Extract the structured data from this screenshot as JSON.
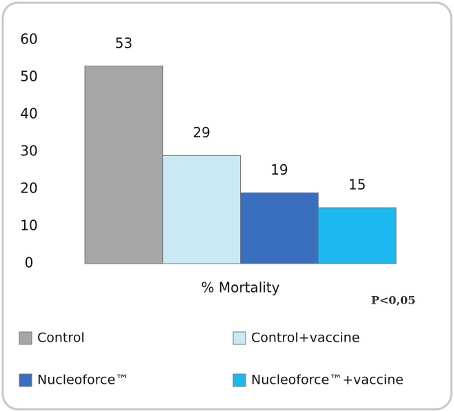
{
  "chart_data": {
    "type": "bar",
    "categories": [
      "% Mortality"
    ],
    "series": [
      {
        "name": "Control",
        "color": "#a6a6a6",
        "values": [
          53
        ]
      },
      {
        "name": "Control+vaccine",
        "color": "#c9eaf4",
        "values": [
          29
        ]
      },
      {
        "name": "Nucleoforce™",
        "color": "#3a6fbf",
        "values": [
          19
        ]
      },
      {
        "name": "Nucleoforce™+vaccine",
        "color": "#1bb9ef",
        "values": [
          15
        ]
      }
    ],
    "ylim": [
      0,
      60
    ],
    "yticks": [
      0,
      10,
      20,
      30,
      40,
      50,
      60
    ],
    "annotation": "P<0,05"
  }
}
